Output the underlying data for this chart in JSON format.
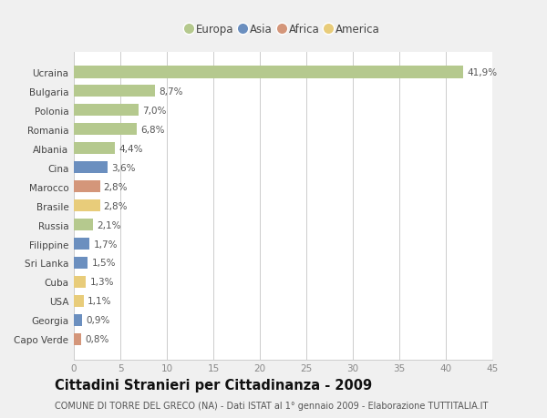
{
  "countries": [
    "Ucraina",
    "Bulgaria",
    "Polonia",
    "Romania",
    "Albania",
    "Cina",
    "Marocco",
    "Brasile",
    "Russia",
    "Filippine",
    "Sri Lanka",
    "Cuba",
    "USA",
    "Georgia",
    "Capo Verde"
  ],
  "values": [
    41.9,
    8.7,
    7.0,
    6.8,
    4.4,
    3.6,
    2.8,
    2.8,
    2.1,
    1.7,
    1.5,
    1.3,
    1.1,
    0.9,
    0.8
  ],
  "labels": [
    "41,9%",
    "8,7%",
    "7,0%",
    "6,8%",
    "4,4%",
    "3,6%",
    "2,8%",
    "2,8%",
    "2,1%",
    "1,7%",
    "1,5%",
    "1,3%",
    "1,1%",
    "0,9%",
    "0,8%"
  ],
  "colors": [
    "#b5c98e",
    "#b5c98e",
    "#b5c98e",
    "#b5c98e",
    "#b5c98e",
    "#6b8fbf",
    "#d4967a",
    "#e8cc7a",
    "#b5c98e",
    "#6b8fbf",
    "#6b8fbf",
    "#e8cc7a",
    "#e8cc7a",
    "#6b8fbf",
    "#d4967a"
  ],
  "legend_labels": [
    "Europa",
    "Asia",
    "Africa",
    "America"
  ],
  "legend_colors": [
    "#b5c98e",
    "#6b8fbf",
    "#d4967a",
    "#e8cc7a"
  ],
  "xlim": [
    0,
    45
  ],
  "xticks": [
    0,
    5,
    10,
    15,
    20,
    25,
    30,
    35,
    40,
    45
  ],
  "title": "Cittadini Stranieri per Cittadinanza - 2009",
  "subtitle": "COMUNE DI TORRE DEL GRECO (NA) - Dati ISTAT al 1° gennaio 2009 - Elaborazione TUTTITALIA.IT",
  "bg_color": "#f0f0f0",
  "plot_bg_color": "#ffffff",
  "bar_height": 0.65,
  "label_fontsize": 7.5,
  "tick_fontsize": 7.5,
  "title_fontsize": 10.5,
  "subtitle_fontsize": 7.0
}
